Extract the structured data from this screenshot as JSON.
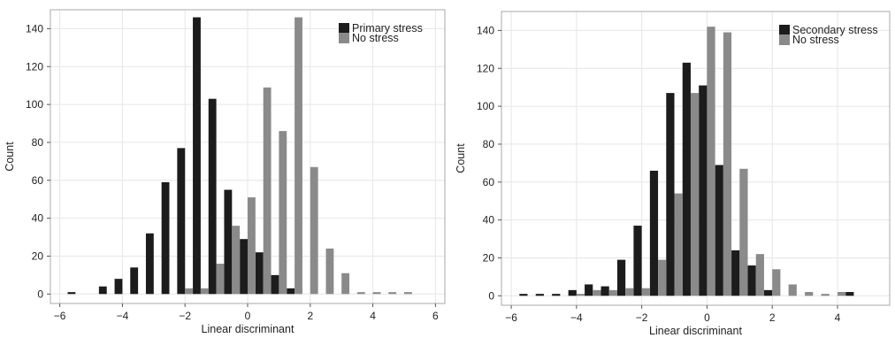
{
  "colors": {
    "dark": "#1c1c1c",
    "light": "#8a8a8a",
    "grid": "#e6e6e6",
    "frame": "#a8a8a8"
  },
  "chart_data": [
    {
      "type": "bar",
      "xlabel": "Linear discriminant",
      "ylabel": "Count",
      "xlim": [
        -6.3,
        6.3
      ],
      "ylim": [
        -5,
        150
      ],
      "xticks": [
        -6,
        -4,
        -2,
        0,
        2,
        4,
        6
      ],
      "yticks": [
        0,
        20,
        40,
        60,
        80,
        100,
        120,
        140
      ],
      "grid": true,
      "legend_position": "top-right",
      "bin_width": 0.5,
      "x": [
        -6.0,
        -5.5,
        -5.0,
        -4.5,
        -4.0,
        -3.5,
        -3.0,
        -2.5,
        -2.0,
        -1.5,
        -1.0,
        -0.5,
        0.0,
        0.5,
        1.0,
        1.5,
        2.0,
        2.5,
        3.0,
        3.5,
        4.0,
        4.5,
        5.0,
        5.5
      ],
      "series": [
        {
          "name": "Primary stress",
          "color": "dark",
          "values": [
            0,
            1,
            0,
            4,
            8,
            14,
            32,
            59,
            77,
            146,
            103,
            55,
            29,
            22,
            10,
            3,
            0,
            0,
            0,
            0,
            0,
            0,
            0,
            0
          ]
        },
        {
          "name": "No stress",
          "color": "light",
          "values": [
            0,
            0,
            0,
            0,
            0,
            0,
            0,
            0,
            3,
            3,
            16,
            36,
            51,
            109,
            86,
            146,
            67,
            24,
            11,
            1,
            1,
            1,
            1,
            0
          ]
        }
      ]
    },
    {
      "type": "bar",
      "xlabel": "Linear discriminant",
      "ylabel": "Count",
      "xlim": [
        -6.3,
        5.6
      ],
      "ylim": [
        -5,
        150
      ],
      "xticks": [
        -6,
        -4,
        -2,
        0,
        2,
        4
      ],
      "yticks": [
        0,
        20,
        40,
        60,
        80,
        100,
        120,
        140
      ],
      "grid": true,
      "legend_position": "top-right",
      "bin_width": 0.5,
      "x": [
        -5.5,
        -5.0,
        -4.5,
        -4.0,
        -3.5,
        -3.0,
        -2.5,
        -2.0,
        -1.5,
        -1.0,
        -0.5,
        0.0,
        0.5,
        1.0,
        1.5,
        2.0,
        2.5,
        3.0,
        3.5,
        4.0,
        4.5,
        5.0
      ],
      "series": [
        {
          "name": "Secondary stress",
          "color": "dark",
          "values": [
            1,
            1,
            1,
            3,
            6,
            5,
            19,
            37,
            66,
            107,
            123,
            111,
            69,
            24,
            16,
            3,
            0,
            0,
            0,
            0,
            2,
            0
          ]
        },
        {
          "name": "No stress",
          "color": "light",
          "values": [
            0,
            0,
            0,
            1,
            3,
            3,
            4,
            4,
            19,
            54,
            107,
            142,
            139,
            67,
            22,
            14,
            6,
            2,
            1,
            2,
            0,
            0
          ]
        }
      ]
    }
  ]
}
